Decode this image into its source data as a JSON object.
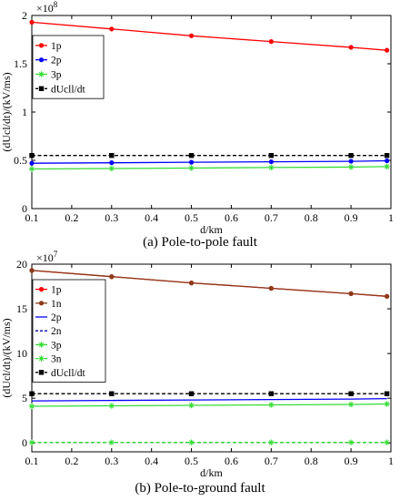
{
  "chart_data": [
    {
      "type": "line",
      "title": "",
      "caption": "(a)  Pole-to-pole fault",
      "xlabel": "d/km",
      "ylabel": "(dUcl/dt)/(kV/ms)",
      "scale_label_base": "×10",
      "scale_label_exp": "8",
      "xlim": [
        0.1,
        1.0
      ],
      "ylim": [
        0,
        2.0
      ],
      "xticks": [
        "0.1",
        "0.2",
        "0.3",
        "0.4",
        "0.5",
        "0.6",
        "0.7",
        "0.8",
        "0.9",
        "1"
      ],
      "yticks": [
        "0",
        "0.5",
        "1",
        "1.5",
        "2"
      ],
      "x": [
        0.1,
        0.3,
        0.5,
        0.7,
        0.9,
        0.99
      ],
      "legend_position": "top-right",
      "series": [
        {
          "name": "1p",
          "color": "#ff0000",
          "marker": "dot",
          "dash": "solid",
          "values": [
            1.93,
            1.86,
            1.79,
            1.73,
            1.67,
            1.64
          ]
        },
        {
          "name": "2p",
          "color": "#0000ff",
          "marker": "dot",
          "dash": "solid",
          "values": [
            0.47,
            0.475,
            0.48,
            0.485,
            0.49,
            0.495
          ]
        },
        {
          "name": "3p",
          "color": "#33dd33",
          "marker": "star",
          "dash": "solid",
          "values": [
            0.41,
            0.415,
            0.42,
            0.425,
            0.43,
            0.435
          ]
        },
        {
          "name": "dUcll/dt",
          "color": "#000000",
          "marker": "square",
          "dash": "dashed",
          "values": [
            0.55,
            0.55,
            0.55,
            0.55,
            0.55,
            0.55
          ]
        }
      ]
    },
    {
      "type": "line",
      "title": "",
      "caption": "(b)  Pole-to-ground fault",
      "xlabel": "d/km",
      "ylabel": "(dUcl/dt)/(kV/ms)",
      "scale_label_base": "×10",
      "scale_label_exp": "7",
      "xlim": [
        0.1,
        1.0
      ],
      "ylim": [
        -1,
        20
      ],
      "xticks": [
        "0.1",
        "0.2",
        "0.3",
        "0.4",
        "0.5",
        "0.6",
        "0.7",
        "0.8",
        "0.9",
        "1"
      ],
      "yticks": [
        "0",
        "5",
        "10",
        "15",
        "20"
      ],
      "x": [
        0.1,
        0.3,
        0.5,
        0.7,
        0.9,
        0.99
      ],
      "legend_position": "top-left",
      "series": [
        {
          "name": "1p",
          "color": "#ff0000",
          "marker": "dot",
          "dash": "solid",
          "values": [
            19.3,
            18.6,
            17.9,
            17.3,
            16.7,
            16.4
          ]
        },
        {
          "name": "1n",
          "color": "#8b3a1a",
          "marker": "dot",
          "dash": "solid",
          "values": [
            19.3,
            18.6,
            17.9,
            17.3,
            16.7,
            16.4
          ]
        },
        {
          "name": "2p",
          "color": "#0000ff",
          "marker": "none",
          "dash": "solid",
          "values": [
            4.7,
            4.75,
            4.8,
            4.85,
            4.9,
            4.95
          ]
        },
        {
          "name": "2n",
          "color": "#0000aa",
          "marker": "none",
          "dash": "dashed",
          "values": [
            0.05,
            0.05,
            0.05,
            0.05,
            0.05,
            0.05
          ]
        },
        {
          "name": "3p",
          "color": "#33dd33",
          "marker": "star",
          "dash": "solid",
          "values": [
            4.1,
            4.15,
            4.2,
            4.25,
            4.3,
            4.35
          ]
        },
        {
          "name": "3n",
          "color": "#33dd33",
          "marker": "star",
          "dash": "dashed",
          "values": [
            0.05,
            0.05,
            0.05,
            0.05,
            0.05,
            0.05
          ]
        },
        {
          "name": "dUcll/dt",
          "color": "#000000",
          "marker": "square",
          "dash": "dashed",
          "values": [
            5.5,
            5.5,
            5.5,
            5.5,
            5.5,
            5.5
          ]
        }
      ]
    }
  ]
}
